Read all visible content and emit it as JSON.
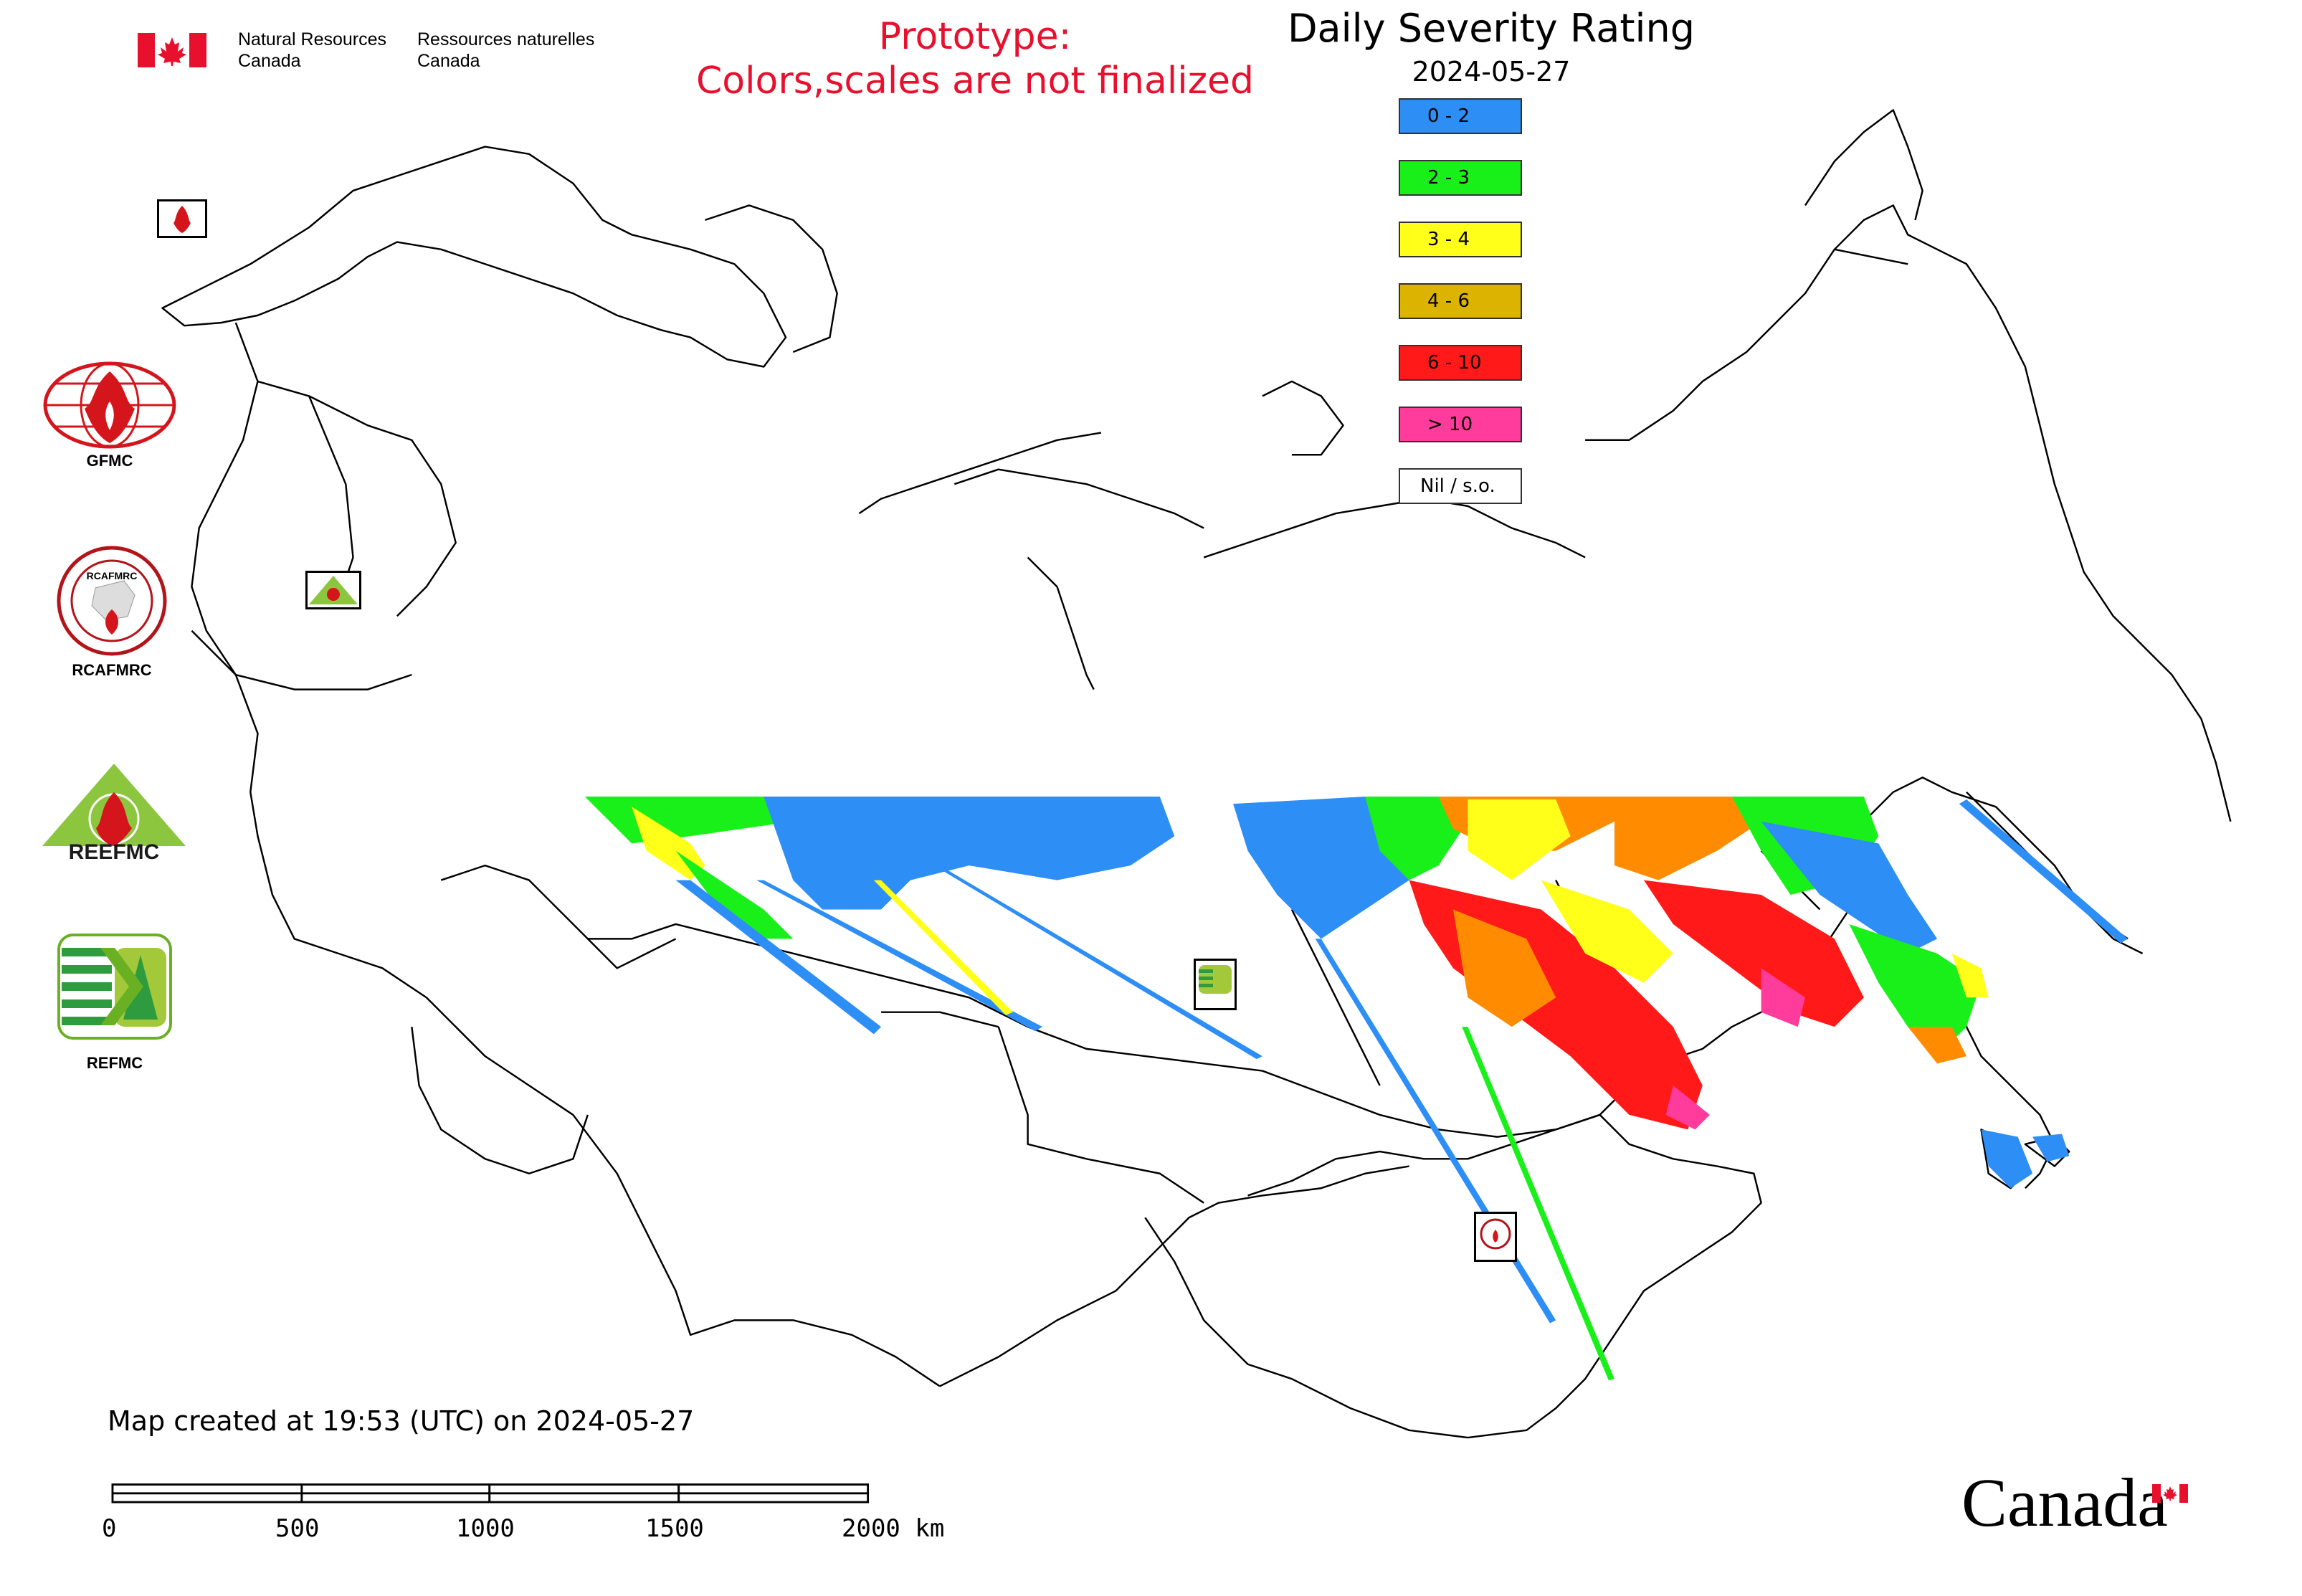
{
  "header": {
    "gov_en_line1": "Natural Resources",
    "gov_en_line2": "Canada",
    "gov_fr_line1": "Ressources naturelles",
    "gov_fr_line2": "Canada",
    "prototype_line1": "Prototype:",
    "prototype_line2": "Colors,scales are not finalized",
    "title": "Daily Severity Rating",
    "date": "2024-05-27"
  },
  "legend": {
    "items": [
      {
        "label": "0 - 2",
        "color": "#2d8ef5"
      },
      {
        "label": "2 - 3",
        "color": "#19f019"
      },
      {
        "label": "3 - 4",
        "color": "#ffff19"
      },
      {
        "label": "4 - 6",
        "color": "#dcb400"
      },
      {
        "label": "6 - 10",
        "color": "#ff1919"
      },
      {
        "label": "> 10",
        "color": "#ff3c9b"
      },
      {
        "label": "Nil / s.o.",
        "color": "#ffffff"
      }
    ]
  },
  "agencies": {
    "gfmc": "GFMC",
    "rcafmrc": "RCAFMRC",
    "reefmc": "REEFMC",
    "refmc": "REFMC",
    "reefmc_logo_text": "REEFMC",
    "rcafmrc_logo_text": "RCAFMRC"
  },
  "footer": {
    "created": "Map created at 19:53 (UTC) on 2024-05-27",
    "canada_wordmark": "Canada"
  },
  "scale_bar": {
    "labels": [
      "0",
      "500",
      "1000",
      "1500",
      "2000 km"
    ]
  },
  "colors": {
    "prototype_text": "#e8112d",
    "canada_red": "#e8112d",
    "border": "#000000"
  }
}
